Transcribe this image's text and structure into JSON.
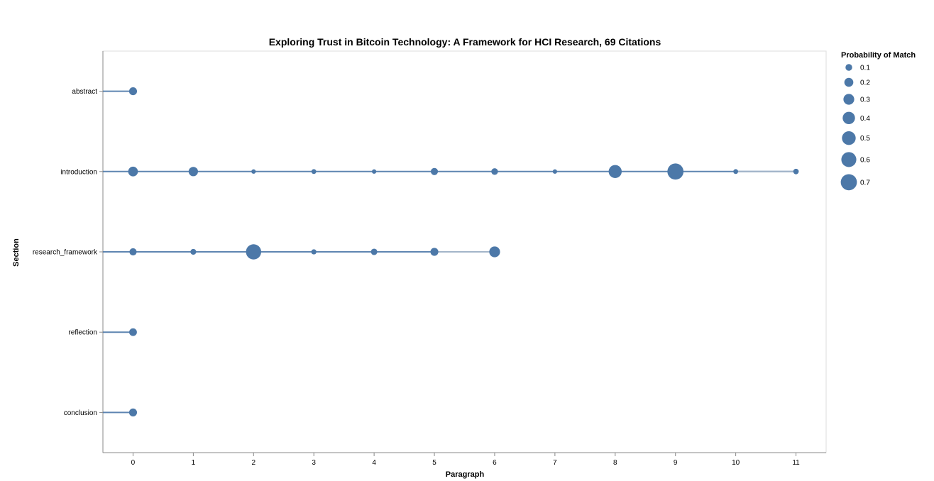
{
  "chart_data": {
    "type": "scatter",
    "title": "Exploring Trust in Bitcoin Technology: A Framework for HCI Research, 69 Citations",
    "xlabel": "Paragraph",
    "ylabel": "Section",
    "x_ticks": [
      0,
      1,
      2,
      3,
      4,
      5,
      6,
      7,
      8,
      9,
      10,
      11
    ],
    "xlim": [
      -0.5,
      11.5
    ],
    "categories": [
      "abstract",
      "introduction",
      "research_framework",
      "reflection",
      "conclusion"
    ],
    "size_legend": {
      "title": "Probability of Match",
      "values": [
        0.1,
        0.2,
        0.3,
        0.4,
        0.5,
        0.6,
        0.7
      ],
      "labels": [
        "0.1",
        "0.2",
        "0.3",
        "0.4",
        "0.5",
        "0.6",
        "0.7"
      ]
    },
    "colors": {
      "mark": "#4c78a8",
      "line_light": "#a3b5c9",
      "axis": "#888888",
      "grid_bg": "#ffffff"
    },
    "series": [
      {
        "section": "abstract",
        "points": [
          [
            0,
            0.15
          ]
        ]
      },
      {
        "section": "introduction",
        "points": [
          [
            0,
            0.24
          ],
          [
            1,
            0.22
          ],
          [
            2,
            0.03
          ],
          [
            3,
            0.04
          ],
          [
            4,
            0.03
          ],
          [
            5,
            0.12
          ],
          [
            6,
            0.1
          ],
          [
            7,
            0.03
          ],
          [
            8,
            0.45
          ],
          [
            9,
            0.7
          ],
          [
            10,
            0.04
          ],
          [
            11,
            0.06
          ]
        ]
      },
      {
        "section": "research_framework",
        "points": [
          [
            0,
            0.12
          ],
          [
            1,
            0.07
          ],
          [
            2,
            0.62
          ],
          [
            3,
            0.05
          ],
          [
            4,
            0.09
          ],
          [
            5,
            0.15
          ],
          [
            6,
            0.3
          ]
        ]
      },
      {
        "section": "reflection",
        "points": [
          [
            0,
            0.14
          ]
        ]
      },
      {
        "section": "conclusion",
        "points": [
          [
            0,
            0.15
          ]
        ]
      }
    ]
  }
}
